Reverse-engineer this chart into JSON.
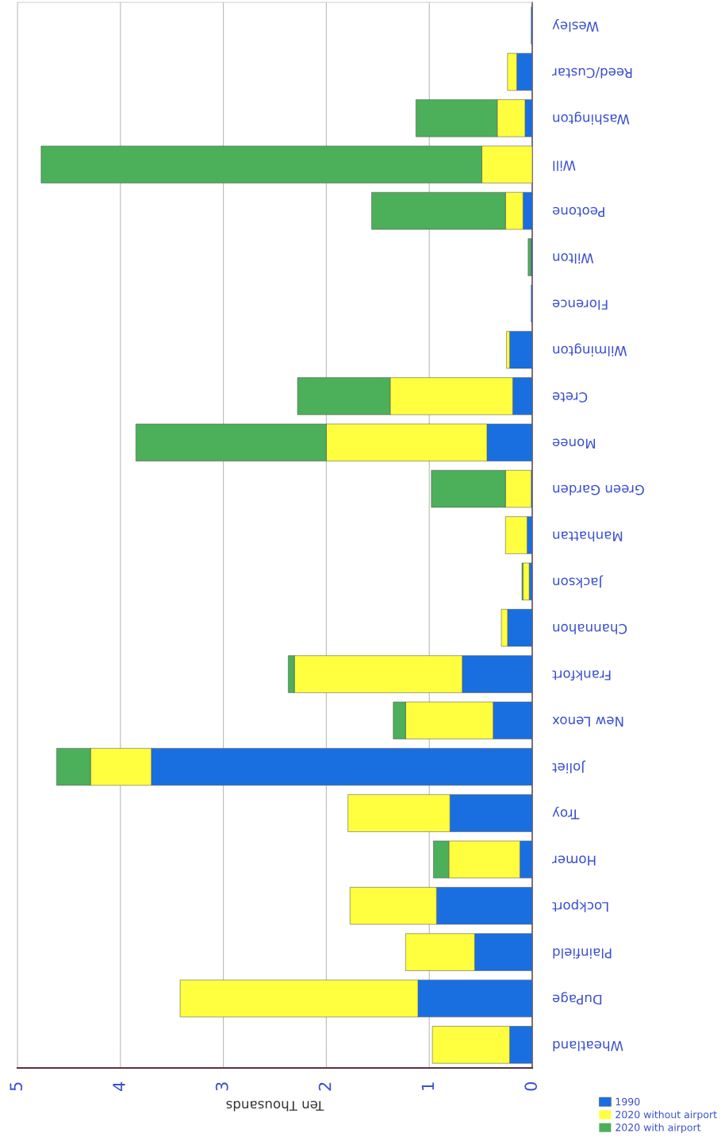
{
  "chart_data": {
    "type": "bar",
    "orientation": "horizontal",
    "stacked": true,
    "xlabel": "Ten Thousands",
    "categories": [
      "Wesley",
      "Reed/Custar",
      "Washington",
      "Will",
      "Peotone",
      "Wilton",
      "Florence",
      "Wilmington",
      "Crete",
      "Monee",
      "Green Garden",
      "Manhattan",
      "Jackson",
      "Channahon",
      "Frankfort",
      "New Lenox",
      "Joliet",
      "Troy",
      "Homer",
      "Lockport",
      "Plainfield",
      "DuPage",
      "Wheatland"
    ],
    "series": [
      {
        "name": "1990",
        "color": "#1a6fe0",
        "values": [
          0.01,
          0.15,
          0.07,
          0,
          0.09,
          0.01,
          0.01,
          0.22,
          0.19,
          0.44,
          0.01,
          0.05,
          0.03,
          0.24,
          0.68,
          0.38,
          3.7,
          0.8,
          0.12,
          0.93,
          0.56,
          1.11,
          0.22
        ]
      },
      {
        "name": "2020 without airport",
        "color": "#ffff40",
        "values": [
          0,
          0.09,
          0.27,
          0.49,
          0.17,
          0,
          0,
          0.03,
          1.19,
          1.56,
          0.25,
          0.21,
          0.06,
          0.06,
          1.63,
          0.85,
          0.59,
          0.99,
          0.69,
          0.84,
          0.67,
          2.31,
          0.75
        ]
      },
      {
        "name": "2020 with airport",
        "color": "#4caf5a",
        "values": [
          0,
          0,
          0.79,
          4.28,
          1.3,
          0.03,
          0,
          0,
          0.9,
          1.85,
          0.72,
          0,
          0.01,
          0,
          0.06,
          0.12,
          0.33,
          0,
          0.15,
          0,
          0,
          0,
          0
        ]
      }
    ],
    "xlim": [
      5,
      0
    ],
    "xticks": [
      0,
      1,
      2,
      3,
      4,
      5
    ],
    "grid": "x",
    "legend": "bottom right"
  }
}
